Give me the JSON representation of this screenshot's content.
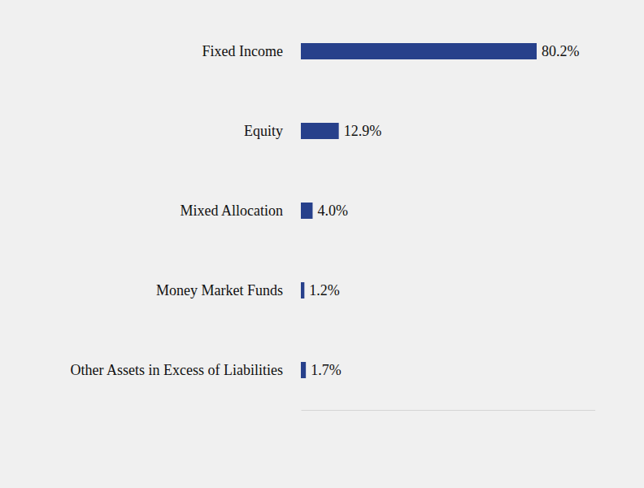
{
  "chart_data": {
    "type": "bar",
    "orientation": "horizontal",
    "categories": [
      "Fixed Income",
      "Equity",
      "Mixed Allocation",
      "Money Market Funds",
      "Other Assets in Excess of Liabilities"
    ],
    "values": [
      80.2,
      12.9,
      4.0,
      1.2,
      1.7
    ],
    "value_labels": [
      "80.2%",
      "12.9%",
      "4.0%",
      "1.2%",
      "1.7%"
    ],
    "color": "#27408b",
    "xlim": [
      0,
      100
    ],
    "xticks": [],
    "grid": false,
    "data_labels": true,
    "tick_labels": "y"
  }
}
